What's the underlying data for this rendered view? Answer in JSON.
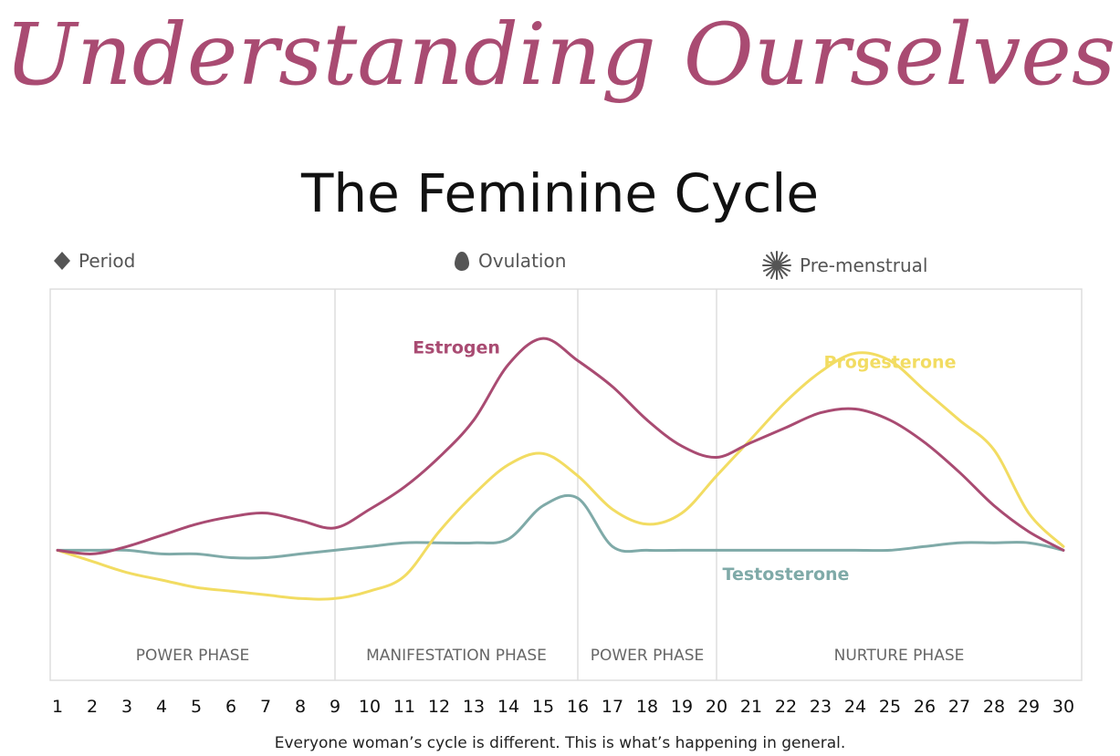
{
  "header": {
    "title": "Understanding Ourselves",
    "subtitle": "The Feminine Cycle"
  },
  "legend": {
    "period": {
      "label": "Period",
      "icon": "diamond-icon"
    },
    "ovulation": {
      "label": "Ovulation",
      "icon": "egg-icon"
    },
    "premenstrual": {
      "label": "Pre-menstrual",
      "icon": "starburst-icon"
    }
  },
  "footnote": "Everyone woman’s cycle is different. This is what’s happening in general.",
  "colors": {
    "estrogen": "#a94b72",
    "progesterone": "#f2dc62",
    "testosterone": "#7faaa8",
    "title": "#a94b72"
  },
  "chart_data": {
    "type": "line",
    "x": [
      1,
      2,
      3,
      4,
      5,
      6,
      7,
      8,
      9,
      10,
      11,
      12,
      13,
      14,
      15,
      16,
      17,
      18,
      19,
      20,
      21,
      22,
      23,
      24,
      25,
      26,
      27,
      28,
      29,
      30
    ],
    "xlabel": "",
    "ylabel": "",
    "ylim": [
      0,
      100
    ],
    "phases": [
      {
        "name": "POWER PHASE",
        "start": 1,
        "end": 9
      },
      {
        "name": "MANIFESTATION PHASE",
        "start": 9,
        "end": 16
      },
      {
        "name": "POWER PHASE",
        "start": 16,
        "end": 20
      },
      {
        "name": "NURTURE PHASE",
        "start": 20,
        "end": 30.5
      }
    ],
    "series": [
      {
        "name": "Estrogen",
        "key": "estrogen",
        "values": [
          35,
          34,
          36,
          39,
          42,
          44,
          45,
          43,
          41,
          46,
          52,
          60,
          70,
          85,
          92,
          86,
          79,
          70,
          63,
          60,
          64,
          68,
          72,
          73,
          70,
          64,
          56,
          47,
          40,
          35
        ],
        "label_at": [
          12.5,
          88
        ]
      },
      {
        "name": "Progesterone",
        "key": "progesterone",
        "values": [
          35,
          32,
          29,
          27,
          25,
          24,
          23,
          22,
          22,
          24,
          28,
          40,
          50,
          58,
          61,
          55,
          46,
          42,
          45,
          55,
          65,
          75,
          83,
          88,
          86,
          78,
          70,
          62,
          45,
          36
        ],
        "label_at": [
          25,
          84
        ]
      },
      {
        "name": "Testosterone",
        "key": "testosterone",
        "values": [
          35,
          35,
          35,
          34,
          34,
          33,
          33,
          34,
          35,
          36,
          37,
          37,
          37,
          38,
          47,
          49,
          36,
          35,
          35,
          35,
          35,
          35,
          35,
          35,
          35,
          36,
          37,
          37,
          37,
          35
        ],
        "label_at": [
          22,
          27
        ]
      }
    ]
  }
}
